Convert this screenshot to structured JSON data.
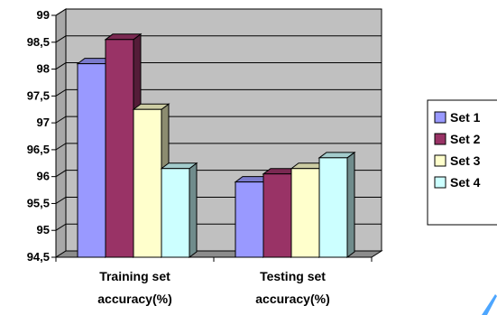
{
  "chart_data": {
    "type": "bar",
    "title": "",
    "xlabel": "",
    "ylabel": "",
    "categories": [
      [
        "Training set",
        "accuracy(%)"
      ],
      [
        "Testing set",
        "accuracy(%)"
      ]
    ],
    "series": [
      {
        "name": "Set 1",
        "color": "#9999ff",
        "values": [
          98.1,
          95.9
        ]
      },
      {
        "name": "Set 2",
        "color": "#993366",
        "values": [
          98.55,
          96.05
        ]
      },
      {
        "name": "Set 3",
        "color": "#ffffcc",
        "values": [
          97.25,
          96.15
        ]
      },
      {
        "name": "Set 4",
        "color": "#ccffff",
        "values": [
          96.15,
          96.35
        ]
      }
    ],
    "ylim": [
      94.5,
      99
    ],
    "yticks": [
      "94,5",
      "95",
      "95,5",
      "96",
      "96,5",
      "97",
      "97,5",
      "98",
      "98,5",
      "99"
    ],
    "grid": true,
    "plot_background": "#c0c0c0",
    "legend_position": "right"
  }
}
